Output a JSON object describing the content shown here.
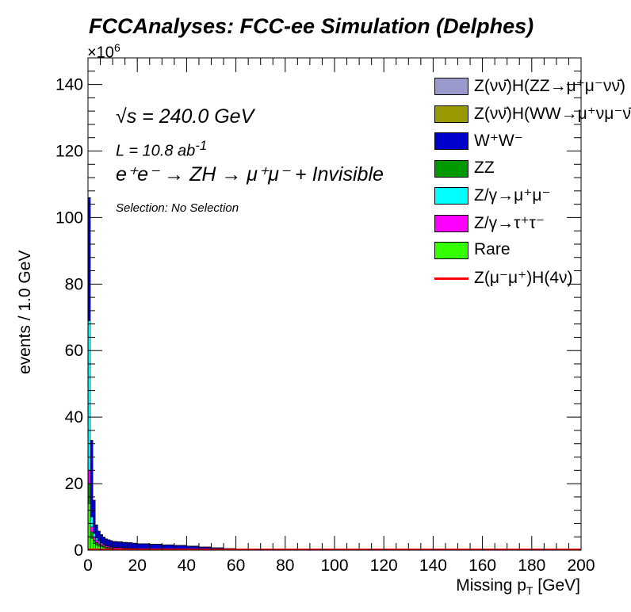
{
  "header": {
    "title": "FCCAnalyses: FCC-ee Simulation (Delphes)",
    "exponent_base": "×10",
    "exponent_power": "6"
  },
  "annotations": {
    "energy": "√s = 240.0 GeV",
    "lumi_base": "L = 10.8 ab",
    "lumi_power": "-1",
    "process": "e⁺e⁻ → ZH → μ⁺μ⁻ + Invisible",
    "selection": "Selection: No Selection"
  },
  "chart_data": {
    "type": "bar",
    "stacked": true,
    "title": "",
    "xlabel_base": "Missing p",
    "xlabel_sub": "T",
    "xlabel_unit": " [GeV]",
    "ylabel": "events / 1.0 GeV",
    "xlim": [
      0,
      200
    ],
    "ylim": [
      0,
      148
    ],
    "y_scale_factor": 1000000,
    "x_ticks": [
      0,
      20,
      40,
      60,
      80,
      100,
      120,
      140,
      160,
      180,
      200
    ],
    "y_ticks": [
      0,
      20,
      40,
      60,
      80,
      100,
      120,
      140
    ],
    "bin_width": 1,
    "bins_x": [
      0,
      1,
      2,
      3,
      4,
      5,
      6,
      7,
      8,
      9,
      10,
      12,
      14,
      16,
      18,
      20,
      25,
      30,
      35,
      40,
      45,
      50,
      55,
      60,
      65,
      70,
      75,
      80,
      90,
      100,
      120,
      140,
      160,
      180
    ],
    "bin_edges_note": "",
    "legend_position": "top-right",
    "series": [
      {
        "name": "Rare",
        "color": "#33ff00",
        "values": [
          14.0,
          3.5,
          2.0,
          1.5,
          1.2,
          1.0,
          0.8,
          0.6,
          0.5,
          0.4,
          0.3,
          0.3,
          0.2,
          0.2,
          0.15,
          0.1,
          0.1,
          0.08,
          0.06,
          0.05,
          0.04,
          0.03,
          0.02,
          0.02,
          0.01,
          0.01,
          0.01,
          0.0,
          0.0,
          0.0,
          0.0,
          0.0,
          0.0,
          0.0
        ]
      },
      {
        "name": "ZZ",
        "color": "#009900",
        "values": [
          6.0,
          2.0,
          1.0,
          0.8,
          0.6,
          0.5,
          0.4,
          0.3,
          0.3,
          0.25,
          0.2,
          0.2,
          0.15,
          0.15,
          0.1,
          0.1,
          0.08,
          0.07,
          0.06,
          0.05,
          0.04,
          0.03,
          0.03,
          0.02,
          0.01,
          0.01,
          0.01,
          0.0,
          0.0,
          0.0,
          0.0,
          0.0,
          0.0,
          0.0
        ]
      },
      {
        "name": "Z/γ→τ⁺τ⁻",
        "color": "#ff00ff",
        "values": [
          4.0,
          1.5,
          1.0,
          0.8,
          0.6,
          0.5,
          0.4,
          0.4,
          0.3,
          0.3,
          0.3,
          0.3,
          0.25,
          0.25,
          0.2,
          0.2,
          0.2,
          0.15,
          0.12,
          0.1,
          0.08,
          0.06,
          0.04,
          0.03,
          0.02,
          0.01,
          0.01,
          0.0,
          0.0,
          0.0,
          0.0,
          0.0,
          0.0,
          0.0
        ]
      },
      {
        "name": "Z/γ→μ⁺μ⁻",
        "color": "#00ffff",
        "values": [
          45.0,
          3.0,
          1.0,
          0.5,
          0.3,
          0.2,
          0.15,
          0.1,
          0.1,
          0.1,
          0.1,
          0.05,
          0.05,
          0.05,
          0.05,
          0.05,
          0.03,
          0.02,
          0.02,
          0.02,
          0.01,
          0.01,
          0.01,
          0.01,
          0.0,
          0.0,
          0.0,
          0.0,
          0.0,
          0.0,
          0.0,
          0.0,
          0.0,
          0.0
        ]
      },
      {
        "name": "W⁺W⁻",
        "color": "#0000cc",
        "values": [
          37.0,
          23.0,
          10.0,
          4.0,
          3.0,
          2.5,
          2.2,
          2.0,
          1.9,
          1.8,
          1.7,
          1.7,
          1.7,
          1.6,
          1.6,
          1.5,
          1.4,
          1.3,
          1.2,
          1.0,
          0.8,
          0.6,
          0.45,
          0.35,
          0.25,
          0.15,
          0.1,
          0.05,
          0.02,
          0.01,
          0.0,
          0.0,
          0.0,
          0.0
        ]
      },
      {
        "name": "Z(νν̄)H(WW→μ⁺νμ⁻ν̄)",
        "color": "#999900",
        "values": [
          0.01,
          0.01,
          0.01,
          0.01,
          0.01,
          0.01,
          0.01,
          0.01,
          0.01,
          0.01,
          0.01,
          0.01,
          0.01,
          0.01,
          0.01,
          0.01,
          0.01,
          0.01,
          0.01,
          0.01,
          0.01,
          0.01,
          0.0,
          0.0,
          0.0,
          0.0,
          0.0,
          0.0,
          0.0,
          0.0,
          0.0,
          0.0,
          0.0,
          0.0
        ]
      },
      {
        "name": "Z(νν̄)H(ZZ→μ⁺μ⁻νν̄)",
        "color": "#9999cc",
        "values": [
          0.01,
          0.01,
          0.01,
          0.01,
          0.01,
          0.01,
          0.01,
          0.01,
          0.01,
          0.01,
          0.01,
          0.01,
          0.01,
          0.01,
          0.01,
          0.01,
          0.01,
          0.01,
          0.01,
          0.01,
          0.0,
          0.0,
          0.0,
          0.0,
          0.0,
          0.0,
          0.0,
          0.0,
          0.0,
          0.0,
          0.0,
          0.0,
          0.0,
          0.0
        ]
      }
    ],
    "signal": {
      "name": "Z(μ⁻μ⁺)H(4ν)",
      "color": "#ff0000",
      "values": [
        0.0,
        0.0,
        0.0,
        0.0,
        0.0,
        0.0,
        0.0,
        0.0,
        0.0,
        0.0,
        0.0,
        0.0,
        0.0,
        0.0,
        0.0,
        0.0,
        0.0,
        0.0,
        0.0,
        0.0,
        0.0,
        0.0,
        0.0,
        0.0,
        0.0,
        0.0,
        0.0,
        0.0,
        0.0,
        0.0,
        0.0,
        0.0,
        0.0,
        0.0
      ]
    }
  },
  "legend": [
    {
      "label": "Z(νν̄)H(ZZ→μ⁺μ⁻νν̄)",
      "color": "#9999cc",
      "kind": "box"
    },
    {
      "label": "Z(νν̄)H(WW→μ⁺νμ⁻ν̄)",
      "color": "#999900",
      "kind": "box"
    },
    {
      "label": "W⁺W⁻",
      "color": "#0000cc",
      "kind": "box"
    },
    {
      "label": "ZZ",
      "color": "#009900",
      "kind": "box"
    },
    {
      "label": "Z/γ→μ⁺μ⁻",
      "color": "#00ffff",
      "kind": "box"
    },
    {
      "label": "Z/γ→τ⁺τ⁻",
      "color": "#ff00ff",
      "kind": "box"
    },
    {
      "label": "Rare",
      "color": "#33ff00",
      "kind": "box"
    },
    {
      "label": "Z(μ⁻μ⁺)H(4ν)",
      "color": "#ff0000",
      "kind": "line"
    }
  ]
}
